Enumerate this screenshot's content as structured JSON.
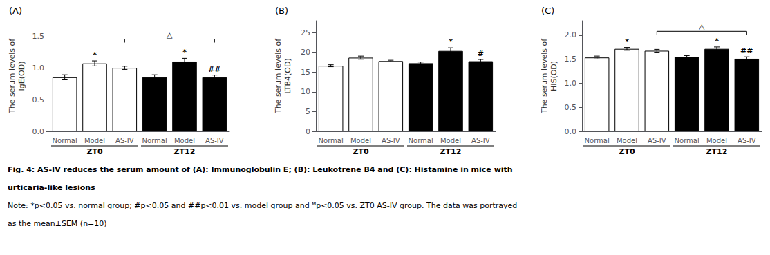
{
  "chart_data": [
    {
      "type": "bar",
      "title": "(A)",
      "ylabel": "The serum levels of\nIgE(OD)",
      "categories": [
        "Normal",
        "Model",
        "AS-IV",
        "Normal",
        "Model",
        "AS-IV"
      ],
      "groups": [
        "ZT0",
        "ZT12"
      ],
      "values": [
        0.855,
        1.075,
        1.005,
        0.855,
        1.105,
        0.855
      ],
      "errors": [
        0.04,
        0.04,
        0.025,
        0.04,
        0.05,
        0.035
      ],
      "colors": [
        "white",
        "white",
        "white",
        "black",
        "black",
        "black"
      ],
      "ylim": [
        0.0,
        1.75
      ],
      "yticks": [
        {
          "value": 0.0,
          "label": "0.0"
        },
        0.5,
        {
          "value": 1.0,
          "label": "1.0"
        },
        1.5
      ],
      "stars": [
        {
          "bar": 1,
          "text": "*"
        },
        {
          "bar": 4,
          "text": "*"
        },
        {
          "bar": 5,
          "text": "##"
        }
      ],
      "bracket": {
        "from_bar": 2,
        "to_bar": 5,
        "text": "△",
        "y": 1.46
      },
      "grid": false
    },
    {
      "type": "bar",
      "title": "(B)",
      "ylabel": "The serum levels of\nLTB4(OD)",
      "categories": [
        "Normal",
        "Model",
        "AS-IV",
        "Normal",
        "Model",
        "AS-IV"
      ],
      "groups": [
        "ZT0",
        "ZT12"
      ],
      "values": [
        16.6,
        18.65,
        17.8,
        17.25,
        20.35,
        17.75
      ],
      "errors": [
        0.25,
        0.4,
        0.2,
        0.3,
        0.8,
        0.45
      ],
      "colors": [
        "white",
        "white",
        "white",
        "black",
        "black",
        "black"
      ],
      "ylim": [
        0,
        28
      ],
      "yticks": [
        0,
        5,
        10,
        15,
        20,
        25
      ],
      "stars": [
        {
          "bar": 4,
          "text": "*"
        },
        {
          "bar": 5,
          "text": "#"
        }
      ],
      "grid": false
    },
    {
      "type": "bar",
      "title": "(C)",
      "ylabel": "The serum levels of\nHIS(OD)",
      "categories": [
        "Normal",
        "Model",
        "AS-IV",
        "Normal",
        "Model",
        "AS-IV"
      ],
      "groups": [
        "ZT0",
        "ZT12"
      ],
      "values": [
        1.535,
        1.715,
        1.675,
        1.545,
        1.715,
        1.51
      ],
      "errors": [
        0.03,
        0.03,
        0.03,
        0.03,
        0.04,
        0.04
      ],
      "colors": [
        "white",
        "white",
        "white",
        "black",
        "black",
        "black"
      ],
      "ylim": [
        0.0,
        2.3
      ],
      "yticks": [
        {
          "value": 0.0,
          "label": "0.0"
        },
        0.5,
        {
          "value": 1.0,
          "label": "1.0"
        },
        1.5,
        {
          "value": 2.0,
          "label": "2.0"
        }
      ],
      "stars": [
        {
          "bar": 1,
          "text": "*"
        },
        {
          "bar": 4,
          "text": "*"
        },
        {
          "bar": 5,
          "text": "##"
        }
      ],
      "bracket": {
        "from_bar": 2,
        "to_bar": 5,
        "text": "△",
        "y": 2.08
      },
      "grid": false
    }
  ],
  "caption": [
    {
      "text": "Fig. 4: AS-IV reduces the serum amount of (A): Immunoglobulin E; (B): Leukotrene B4 and (C): Histamine in mice with",
      "bold": true
    },
    {
      "text": "urticaria-like lesions",
      "bold": true
    },
    {
      "text": "Note: *p<0.05 vs. normal group; #p<0.05 and ##p<0.01 vs. model group and ᴹp<0.05 vs. ZT0 AS-IV group. The data was portrayed",
      "bold": false
    },
    {
      "text": "as the mean±SEM (n=10)",
      "bold": false
    }
  ]
}
